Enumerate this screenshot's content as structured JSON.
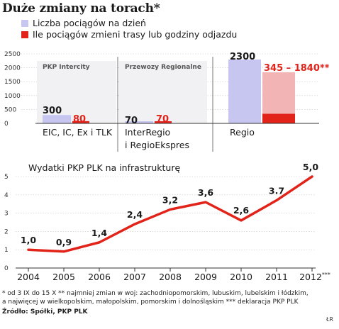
{
  "title": "Duże zmiany na torach*",
  "legend": [
    {
      "label": "Liczba pociągów na dzień",
      "color": "#c6c6f0"
    },
    {
      "label": "Ile pociągów zmieni trasy lub godziny odjazdu",
      "color": "#e2231a"
    }
  ],
  "chart_data": [
    {
      "type": "bar",
      "title": "",
      "y_ticks": [
        "2500",
        "2000",
        "1500",
        "1000",
        "500",
        "0"
      ],
      "ylim": [
        0,
        2500
      ],
      "groups": [
        {
          "header": "PKP Intercity",
          "category": [
            "EIC, IC, Ex i TLK"
          ],
          "value_label": "300",
          "value": 300,
          "changed_label": "80",
          "changed": 80
        },
        {
          "header": "Przewozy Regionalne",
          "category": [
            "InterRegio",
            "i RegioEkspres"
          ],
          "value_label": "70",
          "value": 70,
          "changed_label": "70",
          "changed": 70
        },
        {
          "header": "",
          "category": [
            "Regio"
          ],
          "value_label": "2300",
          "value": 2300,
          "changed_label": "345 – 1840**",
          "changed_low": 345,
          "changed_high": 1840
        }
      ],
      "series": [
        {
          "name": "Liczba pociągów na dzień",
          "color": "#c6c6f0"
        },
        {
          "name": "Ile pociągów zmieni trasy lub godziny odjazdu",
          "color": "#e2231a"
        }
      ],
      "range_upper_color": "#f2b4b4"
    },
    {
      "type": "line",
      "title": "Wydatki PKP PLK na infrastrukturę",
      "x": [
        "2004",
        "2005",
        "2006",
        "2007",
        "2008",
        "2009",
        "2010",
        "2011",
        "2012***"
      ],
      "series": [
        {
          "values": [
            1.0,
            0.9,
            1.4,
            2.4,
            3.2,
            3.6,
            2.6,
            3.7,
            5.0
          ],
          "labels": [
            "1,0",
            "0,9",
            "1,4",
            "2,4",
            "3,2",
            "3,6",
            "2,6",
            "3.7",
            "5,0"
          ],
          "color": "#e2231a"
        }
      ],
      "y_ticks": [
        "5",
        "4",
        "3",
        "2",
        "1",
        "0"
      ],
      "ylim": [
        0,
        5
      ],
      "grid": true
    }
  ],
  "footnotes": [
    "* od 3 IX do 15 X    ** najmniej zmian w woj: zachodniopomorskim, lubuskim, lubelskim i łódzkim,",
    "a najwięcej w wielkopolskim, małopolskim, pomorskim i dolnośląskim    *** deklaracja PKP PLK",
    "Źródło: Spółki, PKP PLK"
  ],
  "credit": "ŁR"
}
